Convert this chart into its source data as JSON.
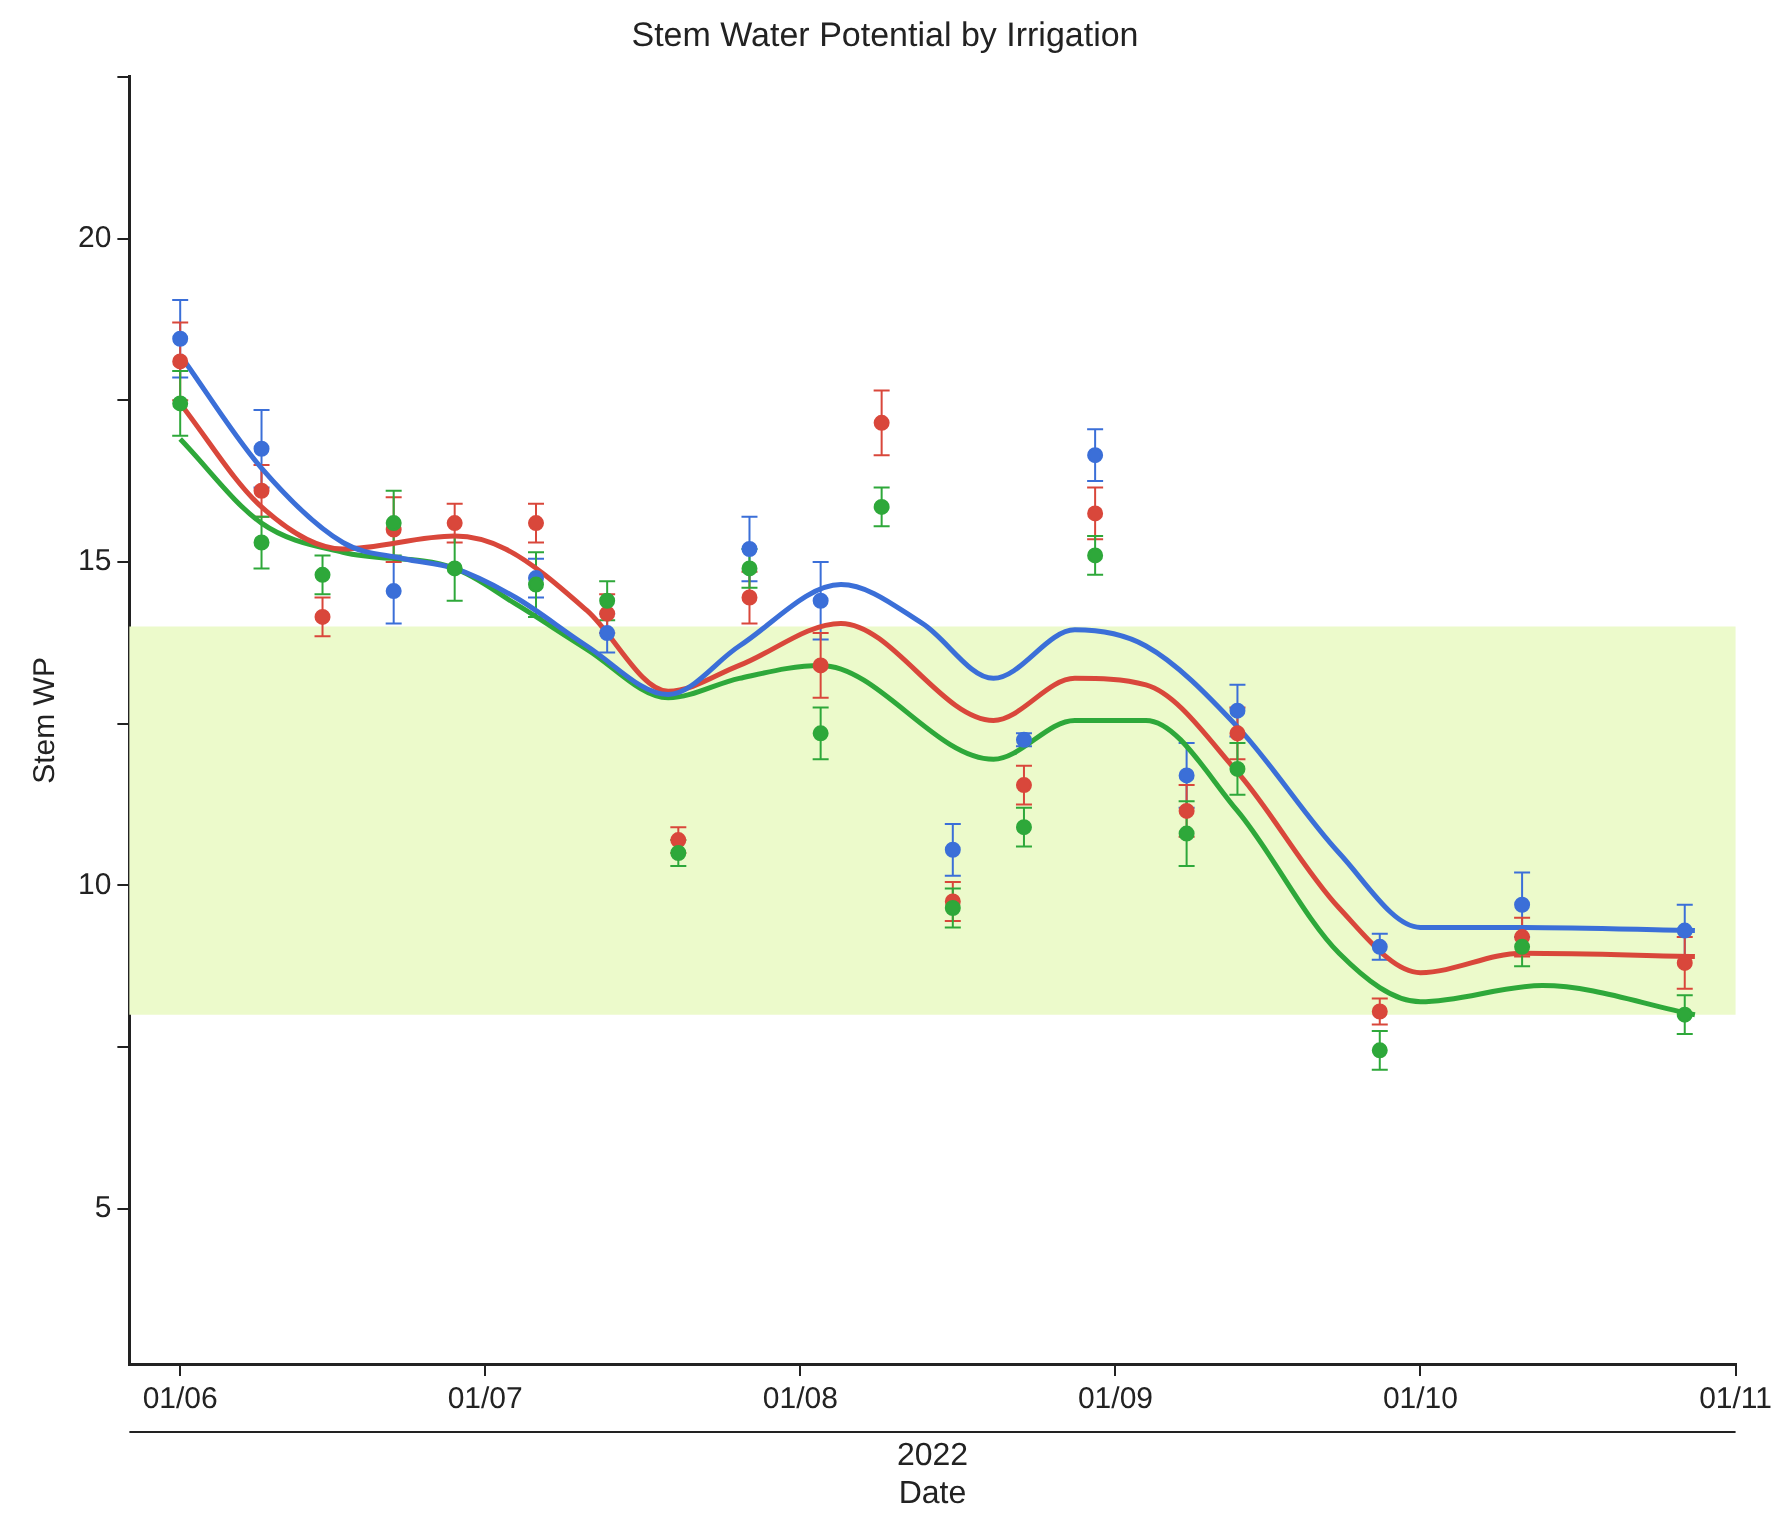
{
  "chart_data": {
    "type": "scatter",
    "title": "Stem Water Potential by Irrigation",
    "xlabel": "Date",
    "ylabel": "Stem WP",
    "annotations": [
      "2022"
    ],
    "x": [
      "2022-06-01",
      "2022-06-09",
      "2022-06-15",
      "2022-06-22",
      "2022-06-28",
      "2022-07-06",
      "2022-07-13",
      "2022-07-20",
      "2022-07-27",
      "2022-08-03",
      "2022-08-09",
      "2022-08-16",
      "2022-08-23",
      "2022-08-30",
      "2022-09-08",
      "2022-09-13",
      "2022-09-27",
      "2022-10-11",
      "2022-10-27"
    ],
    "series": [
      {
        "marker": "circle",
        "color": "#3b6fd8",
        "values": [
          18.45,
          16.75,
          null,
          14.55,
          null,
          14.75,
          13.9,
          null,
          15.2,
          14.4,
          null,
          10.55,
          12.25,
          16.65,
          11.7,
          12.7,
          9.05,
          9.7,
          9.3
        ],
        "errors": [
          0.6,
          0.6,
          null,
          0.5,
          null,
          0.3,
          0.3,
          null,
          0.5,
          0.6,
          null,
          0.4,
          0.1,
          0.4,
          0.5,
          0.4,
          0.2,
          0.5,
          0.4
        ]
      },
      {
        "marker": "circle",
        "color": "#d9473b",
        "values": [
          18.1,
          16.1,
          14.15,
          15.5,
          15.6,
          15.6,
          14.2,
          10.7,
          14.45,
          13.4,
          17.15,
          9.75,
          11.55,
          15.75,
          11.15,
          12.35,
          8.05,
          9.2,
          8.8
        ],
        "errors": [
          0.6,
          0.4,
          0.3,
          0.5,
          0.3,
          0.3,
          0.3,
          0.2,
          0.4,
          0.5,
          0.5,
          0.3,
          0.3,
          0.4,
          0.4,
          0.4,
          0.2,
          0.3,
          0.4
        ]
      },
      {
        "marker": "circle",
        "color": "#2ea83a",
        "values": [
          17.45,
          15.3,
          14.8,
          15.6,
          14.9,
          14.65,
          14.4,
          10.5,
          14.9,
          12.35,
          15.85,
          9.65,
          10.9,
          15.1,
          10.8,
          11.8,
          7.45,
          9.05,
          8.0
        ],
        "errors": [
          0.5,
          0.4,
          0.3,
          0.5,
          0.5,
          0.5,
          0.3,
          0.2,
          0.3,
          0.4,
          0.3,
          0.3,
          0.3,
          0.3,
          0.5,
          0.4,
          0.3,
          0.3,
          0.3
        ]
      },
      {
        "type": "line",
        "marker": "none",
        "color": "#3b6fd8",
        "x": [
          "2022-06-01",
          "2022-06-09",
          "2022-06-17",
          "2022-06-23",
          "2022-06-28",
          "2022-07-04",
          "2022-07-11",
          "2022-07-19",
          "2022-07-26",
          "2022-08-05",
          "2022-08-13",
          "2022-08-20",
          "2022-08-28",
          "2022-09-04",
          "2022-09-13",
          "2022-09-23",
          "2022-10-01",
          "2022-10-11",
          "2022-10-28"
        ],
        "values": [
          18.2,
          16.45,
          15.3,
          15.05,
          14.9,
          14.45,
          13.7,
          12.95,
          13.7,
          14.65,
          14.05,
          13.2,
          13.95,
          13.7,
          12.45,
          10.5,
          9.35,
          9.35,
          9.3
        ]
      },
      {
        "type": "line",
        "marker": "none",
        "color": "#d9473b",
        "x": [
          "2022-06-01",
          "2022-06-09",
          "2022-06-17",
          "2022-06-28",
          "2022-07-03",
          "2022-07-11",
          "2022-07-19",
          "2022-07-26",
          "2022-08-05",
          "2022-08-20",
          "2022-08-28",
          "2022-09-04",
          "2022-09-13",
          "2022-09-23",
          "2022-10-01",
          "2022-10-11",
          "2022-10-28"
        ],
        "values": [
          17.45,
          15.85,
          15.2,
          15.4,
          15.2,
          14.25,
          13.0,
          13.4,
          14.05,
          12.55,
          13.2,
          13.1,
          11.75,
          9.65,
          8.65,
          8.95,
          8.9
        ]
      },
      {
        "type": "line",
        "marker": "none",
        "color": "#2ea83a",
        "x": [
          "2022-06-01",
          "2022-06-09",
          "2022-06-17",
          "2022-06-28",
          "2022-07-04",
          "2022-07-11",
          "2022-07-19",
          "2022-07-26",
          "2022-08-03",
          "2022-08-20",
          "2022-08-28",
          "2022-09-04",
          "2022-09-13",
          "2022-09-23",
          "2022-10-01",
          "2022-10-13",
          "2022-10-28"
        ],
        "values": [
          16.9,
          15.6,
          15.15,
          14.9,
          14.35,
          13.65,
          12.9,
          13.2,
          13.4,
          11.95,
          12.55,
          12.55,
          11.15,
          8.95,
          8.2,
          8.45,
          8.0
        ]
      }
    ],
    "bands": [
      {
        "axis": "y",
        "from": 8,
        "to": 14,
        "color": "#ecfacb"
      }
    ],
    "xlim": [
      "2022-05-27",
      "2022-11-01"
    ],
    "xticks": [
      {
        "value": "2022-06-01",
        "label": "01/06"
      },
      {
        "value": "2022-07-01",
        "label": "01/07"
      },
      {
        "value": "2022-08-01",
        "label": "01/08"
      },
      {
        "value": "2022-09-01",
        "label": "01/09"
      },
      {
        "value": "2022-10-01",
        "label": "01/10"
      },
      {
        "value": "2022-11-01",
        "label": "01/11"
      }
    ],
    "ylim": [
      2.6,
      22.5
    ],
    "yticks": [
      5,
      {
        "value": 7.5,
        "label": null
      },
      10,
      {
        "value": 12.5,
        "label": null
      },
      15,
      {
        "value": 17.5,
        "label": null
      },
      20,
      {
        "value": 22.5,
        "label": null
      }
    ],
    "grid": false,
    "legend": false
  }
}
